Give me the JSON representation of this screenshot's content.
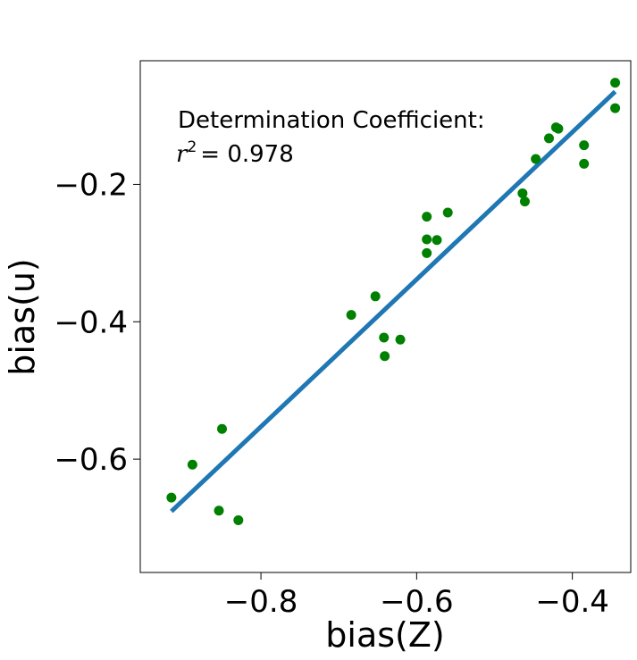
{
  "chart_data": {
    "type": "scatter",
    "title": "",
    "xlabel": "bias(Z)",
    "ylabel": "bias(u)",
    "xlim": [
      -0.955,
      -0.325
    ],
    "ylim": [
      -0.765,
      -0.02
    ],
    "x_ticks": [
      -0.8,
      -0.6,
      -0.4
    ],
    "x_tick_labels": [
      "−0.8",
      "−0.6",
      "−0.4"
    ],
    "y_ticks": [
      -0.6,
      -0.4,
      -0.2
    ],
    "y_tick_labels": [
      "−0.6",
      "−0.4",
      "−0.2"
    ],
    "grid": false,
    "annotation": {
      "line1": "Determination Coefficient:",
      "r_symbol": "r",
      "exponent": "2",
      "equals": "= 0.978"
    },
    "series": [
      {
        "name": "data",
        "kind": "scatter",
        "color": "#008000",
        "points": [
          {
            "x": -0.915,
            "y": -0.656
          },
          {
            "x": -0.888,
            "y": -0.608
          },
          {
            "x": -0.85,
            "y": -0.556
          },
          {
            "x": -0.854,
            "y": -0.675
          },
          {
            "x": -0.829,
            "y": -0.689
          },
          {
            "x": -0.684,
            "y": -0.39
          },
          {
            "x": -0.653,
            "y": -0.363
          },
          {
            "x": -0.642,
            "y": -0.423
          },
          {
            "x": -0.641,
            "y": -0.45
          },
          {
            "x": -0.621,
            "y": -0.426
          },
          {
            "x": -0.587,
            "y": -0.247
          },
          {
            "x": -0.587,
            "y": -0.28
          },
          {
            "x": -0.587,
            "y": -0.3
          },
          {
            "x": -0.574,
            "y": -0.281
          },
          {
            "x": -0.56,
            "y": -0.241
          },
          {
            "x": -0.464,
            "y": -0.213
          },
          {
            "x": -0.461,
            "y": -0.225
          },
          {
            "x": -0.447,
            "y": -0.163
          },
          {
            "x": -0.43,
            "y": -0.133
          },
          {
            "x": -0.421,
            "y": -0.117
          },
          {
            "x": -0.418,
            "y": -0.119
          },
          {
            "x": -0.385,
            "y": -0.143
          },
          {
            "x": -0.385,
            "y": -0.17
          },
          {
            "x": -0.345,
            "y": -0.052
          },
          {
            "x": -0.345,
            "y": -0.089
          }
        ]
      },
      {
        "name": "fit",
        "kind": "line",
        "color": "#1f77b4",
        "x": [
          -0.915,
          -0.345
        ],
        "y": [
          -0.676,
          -0.065
        ]
      }
    ]
  }
}
